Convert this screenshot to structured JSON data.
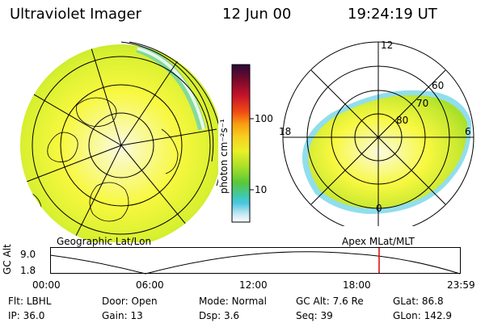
{
  "header": {
    "instrument": "Ultraviolet Imager",
    "date": "12 Jun 00",
    "time": "19:24:19 UT"
  },
  "left_panel": {
    "caption": "Geographic Lat/Lon"
  },
  "right_panel": {
    "caption": "Apex MLat/MLT",
    "mlt_labels": {
      "top": "12",
      "left": "18",
      "right": "6",
      "bottom": "0"
    },
    "mlat_labels": [
      "60",
      "70",
      "80"
    ]
  },
  "colorbar": {
    "unit_label": "photon cm⁻²s⁻¹",
    "ticks": [
      "100",
      "10"
    ],
    "colors": [
      "#2a0a3a",
      "#7a0a2a",
      "#c8142a",
      "#f04a14",
      "#f8a010",
      "#f8d020",
      "#e8f028",
      "#a8e028",
      "#58c838",
      "#40c8a8",
      "#48c8e0",
      "#b8e4f0",
      "#ffffff"
    ]
  },
  "timeline": {
    "axis_label": "GC Alt",
    "y_ticks": [
      "9.0",
      "1.8"
    ],
    "x_ticks": [
      "00:00",
      "06:00",
      "12:00",
      "18:00",
      "23:59"
    ],
    "current_time_marker_color": "#e00000"
  },
  "params": {
    "filter": {
      "label": "Flt:",
      "value": "LBHL"
    },
    "door": {
      "label": "Door:",
      "value": "Open"
    },
    "mode": {
      "label": "Mode:",
      "value": "Normal"
    },
    "gc_alt": {
      "label": "GC Alt:",
      "value": "7.6 Re"
    },
    "glat": {
      "label": "GLat:",
      "value": "86.8"
    },
    "ip": {
      "label": "IP:",
      "value": "36.0"
    },
    "gain": {
      "label": "Gain:",
      "value": "13"
    },
    "dsp": {
      "label": "Dsp:",
      "value": "3.6"
    },
    "seq": {
      "label": "Seq:",
      "value": "39"
    },
    "glon": {
      "label": "GLon:",
      "value": "142.9"
    }
  },
  "colors": {
    "aurora_yellow": "#f8f840",
    "aurora_green": "#a8e028",
    "aurora_cyan": "#48c8e0"
  }
}
